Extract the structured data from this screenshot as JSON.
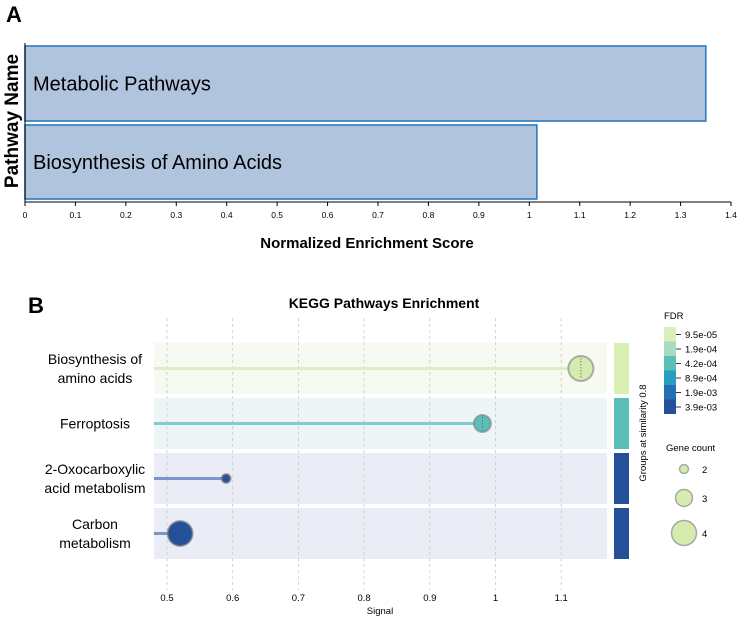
{
  "chart_data": [
    {
      "panel_label": "A",
      "type": "bar",
      "orientation": "horizontal",
      "categories": [
        "Metabolic Pathways",
        "Biosynthesis of Amino Acids"
      ],
      "values": [
        1.35,
        1.015
      ],
      "xlabel": "Normalized Enrichment Score",
      "ylabel": "Pathway Name",
      "xlim": [
        0,
        1.4
      ],
      "xticks": [
        "0",
        "0.1",
        "0.2",
        "0.3",
        "0.4",
        "0.5",
        "0.6",
        "0.7",
        "0.8",
        "0.9",
        "1",
        "1.1",
        "1.2",
        "1.3",
        "1.4"
      ],
      "bar_fill": "#b0c4de",
      "bar_stroke": "#2b7bc0"
    },
    {
      "panel_label": "B",
      "type": "scatter",
      "subtype": "lollipop",
      "title": "KEGG Pathways Enrichment",
      "xlabel": "Signal",
      "xlim": [
        0.48,
        1.17
      ],
      "xticks": [
        "0.5",
        "0.6",
        "0.7",
        "0.8",
        "0.9",
        "1",
        "1.1"
      ],
      "categories": [
        [
          "Biosynthesis of",
          "amino acids"
        ],
        [
          "Ferroptosis"
        ],
        [
          "2-Oxocarboxylic",
          "acid metabolism"
        ],
        [
          "Carbon",
          "metabolism"
        ]
      ],
      "signal": [
        1.13,
        0.98,
        0.59,
        0.52
      ],
      "gene_count": [
        4,
        3,
        2,
        4
      ],
      "fdr_color": [
        "#d4ecb0",
        "#5bbfb8",
        "#24509a",
        "#24509a"
      ],
      "line_color": [
        "#dcefc4",
        "#7fcfc6",
        "#7c95c6",
        "#7c95c6"
      ],
      "row_bg": [
        "#f6faf0",
        "#edf5f6",
        "#ebedf6",
        "#ebedf6"
      ],
      "group_color": [
        "#d8f0b4",
        "#5bbfb8",
        "#24509a",
        "#24509a"
      ],
      "group_label": "Groups at similarity 0.8",
      "legend_fdr": {
        "title": "FDR",
        "labels": [
          "9.5e-05",
          "1.9e-04",
          "4.2e-04",
          "8.9e-04",
          "1.9e-03",
          "3.9e-03"
        ],
        "colors": [
          "#dbf0b8",
          "#a8dcc0",
          "#5bbfb8",
          "#2a9ec0",
          "#2570b3",
          "#24509a"
        ]
      },
      "legend_size": {
        "title": "Gene count",
        "labels": [
          "2",
          "3",
          "4"
        ],
        "values": [
          2,
          3,
          4
        ]
      }
    }
  ]
}
